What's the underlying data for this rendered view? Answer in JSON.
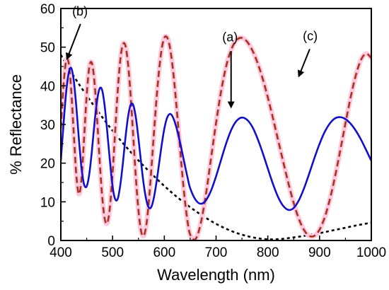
{
  "chart_data": {
    "type": "line",
    "xlabel": "Wavelength (nm)",
    "ylabel": "% Reflectance",
    "xlim": [
      400,
      1000
    ],
    "ylim": [
      0,
      60
    ],
    "x_ticks": [
      400,
      500,
      600,
      700,
      800,
      900,
      1000
    ],
    "y_ticks": [
      0,
      10,
      20,
      30,
      40,
      50,
      60
    ],
    "grid": false,
    "series": [
      {
        "label": "(a)",
        "color": "#1010cc",
        "style": "solid",
        "x": [
          400,
          405,
          410,
          415,
          420,
          425,
          430,
          435,
          440,
          445,
          450,
          455,
          460,
          465,
          470,
          475,
          480,
          485,
          490,
          495,
          500,
          505,
          510,
          515,
          520,
          525,
          530,
          535,
          540,
          545,
          550,
          555,
          560,
          565,
          570,
          575,
          580,
          585,
          590,
          595,
          600,
          605,
          610,
          615,
          620,
          625,
          630,
          635,
          640,
          645,
          650,
          660,
          670,
          680,
          690,
          700,
          710,
          720,
          730,
          740,
          750,
          760,
          770,
          780,
          790,
          800,
          810,
          820,
          830,
          840,
          850,
          860,
          870,
          880,
          890,
          900,
          910,
          920,
          930,
          940,
          950,
          960,
          970,
          980,
          990,
          1000
        ],
        "y": [
          20.6,
          29.7,
          37.9,
          43.2,
          44.6,
          41.4,
          34.5,
          26.0,
          18.7,
          14.5,
          14.0,
          17.2,
          23.1,
          30.3,
          36.1,
          39.3,
          38.8,
          34.5,
          27.7,
          20.4,
          14.0,
          10.7,
          10.8,
          14.4,
          20.1,
          26.7,
          32.1,
          35.1,
          35.0,
          31.8,
          26.4,
          20.3,
          14.7,
          10.6,
          8.5,
          8.7,
          11.2,
          15.2,
          20.0,
          24.8,
          28.9,
          31.6,
          32.7,
          32.3,
          30.7,
          28.4,
          25.6,
          22.5,
          19.3,
          16.2,
          13.5,
          10.6,
          9.5,
          10.3,
          12.8,
          16.6,
          21.0,
          25.3,
          28.8,
          31.0,
          31.8,
          31.2,
          29.4,
          26.4,
          22.7,
          18.6,
          14.6,
          11.2,
          8.9,
          7.9,
          8.4,
          10.4,
          13.5,
          17.3,
          21.3,
          25.0,
          28.1,
          30.3,
          31.6,
          31.9,
          31.4,
          30.2,
          28.4,
          26.1,
          23.4,
          20.6
        ]
      },
      {
        "label": "(b)",
        "color": "#000000",
        "style": "dotted",
        "x": [
          400,
          425,
          450,
          475,
          500,
          525,
          550,
          575,
          600,
          625,
          650,
          675,
          700,
          725,
          750,
          775,
          800,
          825,
          850,
          875,
          900,
          925,
          950,
          975,
          1000
        ],
        "y": [
          48.0,
          42.5,
          37.5,
          32.8,
          28.4,
          24.4,
          20.7,
          17.3,
          14.1,
          11.2,
          8.6,
          6.3,
          4.3,
          2.7,
          1.5,
          0.7,
          0.3,
          0.4,
          0.8,
          1.3,
          1.9,
          2.6,
          3.3,
          4.0,
          4.6
        ]
      },
      {
        "label": "(c)",
        "color": "#a83222",
        "glow_color": "#ffc8dc",
        "style": "dashed",
        "x": [
          400,
          405,
          410,
          415,
          420,
          425,
          430,
          435,
          440,
          445,
          450,
          455,
          460,
          465,
          470,
          475,
          480,
          485,
          490,
          495,
          500,
          505,
          510,
          515,
          520,
          525,
          530,
          535,
          540,
          545,
          550,
          555,
          560,
          565,
          570,
          575,
          580,
          585,
          590,
          595,
          600,
          605,
          610,
          615,
          620,
          625,
          630,
          635,
          640,
          645,
          650,
          660,
          670,
          680,
          690,
          700,
          710,
          720,
          730,
          740,
          750,
          760,
          770,
          780,
          790,
          800,
          810,
          820,
          830,
          840,
          850,
          860,
          870,
          880,
          890,
          900,
          910,
          920,
          930,
          940,
          950,
          960,
          970,
          980,
          990,
          1000
        ],
        "y": [
          29.0,
          39.8,
          46.2,
          46.0,
          39.1,
          27.7,
          16.8,
          12.0,
          16.0,
          26.6,
          37.6,
          44.8,
          45.9,
          41.0,
          31.6,
          20.7,
          11.3,
          5.5,
          4.6,
          8.8,
          17.4,
          28.2,
          38.8,
          46.8,
          50.7,
          50.3,
          45.5,
          37.3,
          26.8,
          16.3,
          7.8,
          2.5,
          1.2,
          3.8,
          10.0,
          18.6,
          27.9,
          36.8,
          44.2,
          49.6,
          52.4,
          52.6,
          50.5,
          46.1,
          39.9,
          32.4,
          24.5,
          16.8,
          10.1,
          4.8,
          1.5,
          0.3,
          4.2,
          11.6,
          21.0,
          30.4,
          38.8,
          45.3,
          49.6,
          51.9,
          52.4,
          51.4,
          49.2,
          46.0,
          41.9,
          37.0,
          31.6,
          25.9,
          20.2,
          14.7,
          9.7,
          5.6,
          2.7,
          1.2,
          1.2,
          2.8,
          6.0,
          10.7,
          16.6,
          23.3,
          30.3,
          37.0,
          42.7,
          46.7,
          48.3,
          47.2
        ]
      }
    ],
    "annotations": [
      {
        "text": "(a)",
        "text_at": [
          727,
          51.5
        ],
        "arrow_from": [
          729,
          49.0
        ],
        "arrow_to": [
          729,
          34.5
        ]
      },
      {
        "text": "(b)",
        "text_at": [
          437,
          58.2
        ],
        "arrow_from": [
          438,
          56.0
        ],
        "arrow_to": [
          412,
          47.0
        ]
      },
      {
        "text": "(c)",
        "text_at": [
          882,
          51.8
        ],
        "arrow_from": [
          881,
          49.5
        ],
        "arrow_to": [
          860,
          42.5
        ]
      }
    ]
  }
}
